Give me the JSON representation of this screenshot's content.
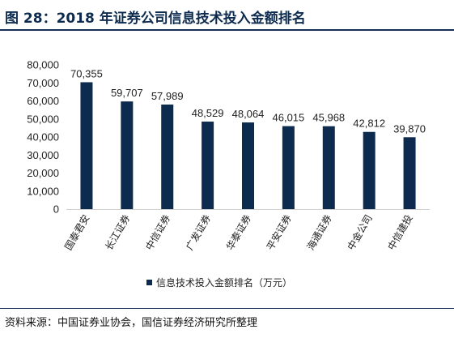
{
  "figure": {
    "title": "图 28：2018 年证券公司信息技术投入金额排名",
    "source": "资料来源：中国证券业协会，国信证券经济研究所整理"
  },
  "colors": {
    "bar": "#0d2b4e",
    "accent_rule": "#1a2f57"
  },
  "chart_data": {
    "type": "bar",
    "categories": [
      "国泰君安",
      "长江证券",
      "中信证券",
      "广发证券",
      "华泰证券",
      "平安证券",
      "海通证券",
      "中金公司",
      "中信建投"
    ],
    "series": [
      {
        "name": "信息技术投入金额排名（万元）",
        "values": [
          70355,
          59707,
          57989,
          48529,
          48064,
          46015,
          45968,
          42812,
          39870
        ]
      }
    ],
    "value_labels": [
      "70,355",
      "59,707",
      "57,989",
      "48,529",
      "48,064",
      "46,015",
      "45,968",
      "42,812",
      "39,870"
    ],
    "yticks": [
      "0",
      "10,000",
      "20,000",
      "30,000",
      "40,000",
      "50,000",
      "60,000",
      "70,000",
      "80,000"
    ],
    "ylim": [
      0,
      80000
    ],
    "ystep": 10000,
    "grid": false,
    "legend_position": "bottom-center"
  }
}
